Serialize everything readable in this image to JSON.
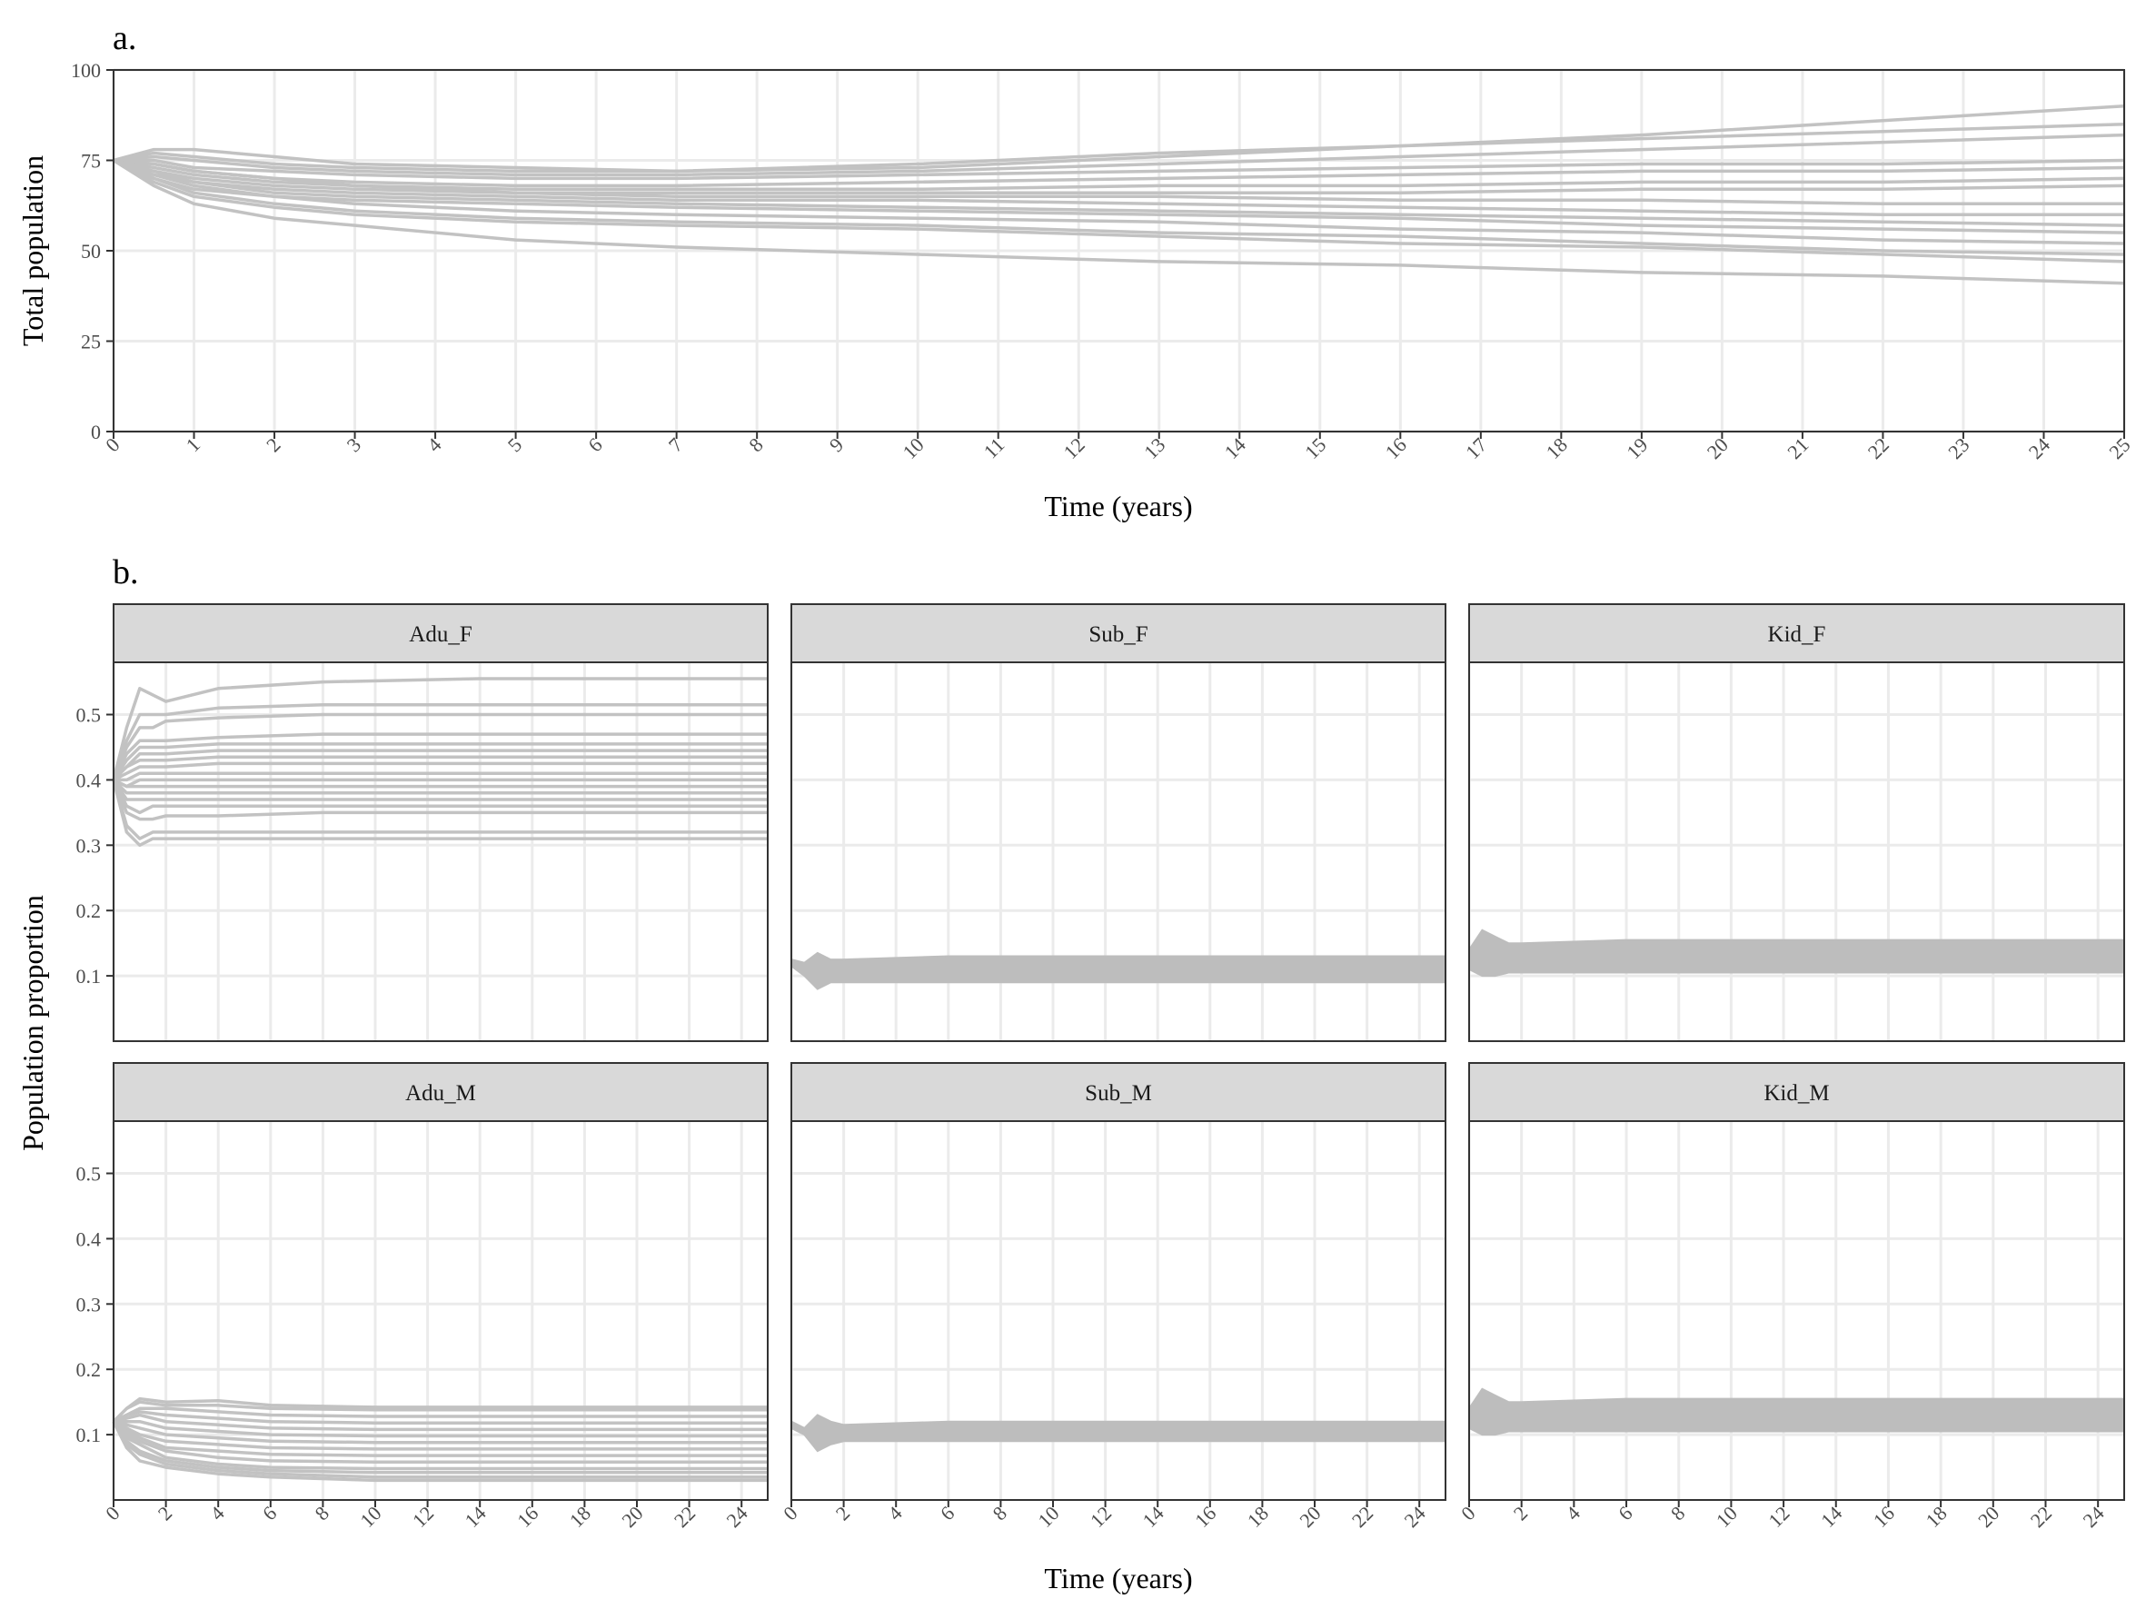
{
  "figure": {
    "panel_a_tag": "a.",
    "panel_b_tag": "b.",
    "line_color": "#c2c2c2",
    "background": "#ffffff"
  },
  "chart_data": [
    {
      "type": "line",
      "panel": "a.",
      "xlabel": "Time (years)",
      "ylabel": "Total population",
      "xlim": [
        0,
        25
      ],
      "ylim": [
        0,
        100
      ],
      "xticks": [
        0,
        1,
        2,
        3,
        4,
        5,
        6,
        7,
        8,
        9,
        10,
        11,
        12,
        13,
        14,
        15,
        16,
        17,
        18,
        19,
        20,
        21,
        22,
        23,
        24,
        25
      ],
      "yticks": [
        0,
        25,
        50,
        75,
        100
      ],
      "grid": true,
      "legend": "none",
      "series": [
        {
          "x": [
            0,
            0.5,
            1,
            2,
            3,
            5,
            7,
            10,
            13,
            16,
            19,
            22,
            25
          ],
          "y": [
            75,
            78,
            78,
            76,
            74,
            73,
            72,
            73,
            76,
            79,
            82,
            86,
            90
          ]
        },
        {
          "x": [
            0,
            0.5,
            1,
            2,
            3,
            5,
            7,
            10,
            13,
            16,
            19,
            22,
            25
          ],
          "y": [
            75,
            77,
            76,
            74,
            73,
            72,
            72,
            74,
            77,
            79,
            81,
            83,
            85
          ]
        },
        {
          "x": [
            0,
            0.5,
            1,
            2,
            3,
            5,
            7,
            10,
            13,
            16,
            19,
            22,
            25
          ],
          "y": [
            75,
            76,
            75,
            73,
            72,
            71,
            71,
            72,
            74,
            76,
            78,
            80,
            82
          ]
        },
        {
          "x": [
            0,
            0.5,
            1,
            2,
            3,
            5,
            7,
            10,
            13,
            16,
            19,
            22,
            25
          ],
          "y": [
            75,
            75,
            73,
            72,
            71,
            70,
            70,
            71,
            72,
            73,
            74,
            74,
            75
          ]
        },
        {
          "x": [
            0,
            0.5,
            1,
            2,
            3,
            5,
            7,
            10,
            13,
            16,
            19,
            22,
            25
          ],
          "y": [
            75,
            74,
            72,
            70,
            69,
            68,
            68,
            69,
            70,
            71,
            72,
            72,
            73
          ]
        },
        {
          "x": [
            0,
            0.5,
            1,
            2,
            3,
            5,
            7,
            10,
            13,
            16,
            19,
            22,
            25
          ],
          "y": [
            75,
            73,
            71,
            69,
            68,
            67,
            67,
            67,
            68,
            68,
            69,
            69,
            70
          ]
        },
        {
          "x": [
            0,
            0.5,
            1,
            2,
            3,
            5,
            7,
            10,
            13,
            16,
            19,
            22,
            25
          ],
          "y": [
            75,
            74,
            72,
            70,
            68,
            66,
            66,
            66,
            66,
            66,
            67,
            67,
            68
          ]
        },
        {
          "x": [
            0,
            0.5,
            1,
            2,
            3,
            5,
            7,
            10,
            13,
            16,
            19,
            22,
            25
          ],
          "y": [
            75,
            72,
            70,
            68,
            67,
            66,
            65,
            65,
            65,
            64,
            64,
            63,
            63
          ]
        },
        {
          "x": [
            0,
            0.5,
            1,
            2,
            3,
            5,
            7,
            10,
            13,
            16,
            19,
            22,
            25
          ],
          "y": [
            75,
            71,
            69,
            67,
            66,
            65,
            64,
            64,
            63,
            62,
            61,
            60,
            60
          ]
        },
        {
          "x": [
            0,
            0.5,
            1,
            2,
            3,
            5,
            7,
            10,
            13,
            16,
            19,
            22,
            25
          ],
          "y": [
            75,
            72,
            69,
            66,
            65,
            64,
            63,
            62,
            61,
            60,
            59,
            58,
            57
          ]
        },
        {
          "x": [
            0,
            0.5,
            1,
            2,
            3,
            5,
            7,
            10,
            13,
            16,
            19,
            22,
            25
          ],
          "y": [
            75,
            70,
            67,
            65,
            64,
            63,
            62,
            61,
            60,
            59,
            57,
            56,
            55
          ]
        },
        {
          "x": [
            0,
            0.5,
            1,
            2,
            3,
            5,
            7,
            10,
            13,
            16,
            19,
            22,
            25
          ],
          "y": [
            75,
            71,
            68,
            65,
            63,
            61,
            60,
            59,
            58,
            56,
            55,
            53,
            52
          ]
        },
        {
          "x": [
            0,
            0.5,
            1,
            2,
            3,
            5,
            7,
            10,
            13,
            16,
            19,
            22,
            25
          ],
          "y": [
            75,
            70,
            66,
            63,
            61,
            59,
            58,
            57,
            55,
            54,
            52,
            50,
            49
          ]
        },
        {
          "x": [
            0,
            0.5,
            1,
            2,
            3,
            5,
            7,
            10,
            13,
            16,
            19,
            22,
            25
          ],
          "y": [
            75,
            69,
            65,
            62,
            60,
            58,
            57,
            56,
            54,
            52,
            51,
            49,
            47
          ]
        },
        {
          "x": [
            0,
            0.5,
            1,
            2,
            3,
            5,
            7,
            10,
            13,
            16,
            19,
            22,
            25
          ],
          "y": [
            75,
            68,
            63,
            59,
            57,
            53,
            51,
            49,
            47,
            46,
            44,
            43,
            41
          ]
        }
      ]
    },
    {
      "type": "line",
      "panel": "b.",
      "xlabel": "Time (years)",
      "ylabel": "Population proportion",
      "xlim": [
        0,
        25
      ],
      "ylim": [
        0,
        0.58
      ],
      "xticks": [
        0,
        2,
        4,
        6,
        8,
        10,
        12,
        14,
        16,
        18,
        20,
        22,
        24
      ],
      "yticks": [
        0.1,
        0.2,
        0.3,
        0.4,
        0.5
      ],
      "grid": true,
      "legend": "none",
      "facets": [
        {
          "label": "Adu_F",
          "series_x": [
            0,
            0.5,
            1,
            1.5,
            2,
            4,
            8,
            14,
            20,
            25
          ],
          "series_y": [
            [
              0.4,
              0.48,
              0.54,
              0.53,
              0.52,
              0.54,
              0.55,
              0.555,
              0.555,
              0.555
            ],
            [
              0.4,
              0.46,
              0.5,
              0.5,
              0.5,
              0.51,
              0.515,
              0.515,
              0.515,
              0.515
            ],
            [
              0.4,
              0.45,
              0.48,
              0.48,
              0.49,
              0.495,
              0.5,
              0.5,
              0.5,
              0.5
            ],
            [
              0.4,
              0.44,
              0.46,
              0.46,
              0.46,
              0.465,
              0.47,
              0.47,
              0.47,
              0.47
            ],
            [
              0.4,
              0.43,
              0.45,
              0.45,
              0.45,
              0.455,
              0.455,
              0.455,
              0.455,
              0.455
            ],
            [
              0.4,
              0.42,
              0.44,
              0.44,
              0.44,
              0.445,
              0.445,
              0.445,
              0.445,
              0.445
            ],
            [
              0.4,
              0.42,
              0.43,
              0.43,
              0.43,
              0.435,
              0.435,
              0.435,
              0.435,
              0.435
            ],
            [
              0.4,
              0.41,
              0.42,
              0.42,
              0.42,
              0.425,
              0.425,
              0.425,
              0.425,
              0.425
            ],
            [
              0.4,
              0.4,
              0.41,
              0.41,
              0.41,
              0.41,
              0.41,
              0.41,
              0.41,
              0.41
            ],
            [
              0.4,
              0.39,
              0.4,
              0.4,
              0.4,
              0.4,
              0.4,
              0.4,
              0.4,
              0.4
            ],
            [
              0.4,
              0.39,
              0.39,
              0.39,
              0.39,
              0.39,
              0.39,
              0.39,
              0.39,
              0.39
            ],
            [
              0.4,
              0.38,
              0.38,
              0.38,
              0.38,
              0.38,
              0.38,
              0.38,
              0.38,
              0.38
            ],
            [
              0.4,
              0.37,
              0.37,
              0.37,
              0.37,
              0.37,
              0.37,
              0.37,
              0.37,
              0.37
            ],
            [
              0.4,
              0.36,
              0.35,
              0.36,
              0.36,
              0.36,
              0.36,
              0.36,
              0.36,
              0.36
            ],
            [
              0.4,
              0.35,
              0.34,
              0.34,
              0.345,
              0.345,
              0.35,
              0.35,
              0.35,
              0.35
            ],
            [
              0.4,
              0.33,
              0.31,
              0.32,
              0.32,
              0.32,
              0.32,
              0.32,
              0.32,
              0.32
            ],
            [
              0.4,
              0.32,
              0.3,
              0.31,
              0.31,
              0.31,
              0.31,
              0.31,
              0.31,
              0.31
            ]
          ]
        },
        {
          "label": "Sub_F",
          "band_x": [
            0,
            0.5,
            1,
            1.5,
            2,
            6,
            12,
            25
          ],
          "band_upper": [
            0.125,
            0.12,
            0.135,
            0.125,
            0.125,
            0.13,
            0.13,
            0.13
          ],
          "band_lower": [
            0.115,
            0.1,
            0.08,
            0.09,
            0.09,
            0.09,
            0.09,
            0.09
          ]
        },
        {
          "label": "Kid_F",
          "band_x": [
            0,
            0.5,
            1,
            1.5,
            2,
            6,
            12,
            25
          ],
          "band_upper": [
            0.14,
            0.17,
            0.16,
            0.15,
            0.15,
            0.155,
            0.155,
            0.155
          ],
          "band_lower": [
            0.11,
            0.1,
            0.1,
            0.105,
            0.105,
            0.105,
            0.105,
            0.105
          ]
        },
        {
          "label": "Adu_M",
          "series_x": [
            0,
            0.5,
            1,
            2,
            4,
            6,
            10,
            16,
            25
          ],
          "series_y": [
            [
              0.12,
              0.14,
              0.155,
              0.15,
              0.152,
              0.145,
              0.142,
              0.142,
              0.142
            ],
            [
              0.12,
              0.14,
              0.15,
              0.145,
              0.145,
              0.14,
              0.138,
              0.138,
              0.138
            ],
            [
              0.12,
              0.13,
              0.14,
              0.14,
              0.135,
              0.13,
              0.128,
              0.128,
              0.128
            ],
            [
              0.12,
              0.13,
              0.135,
              0.13,
              0.125,
              0.12,
              0.118,
              0.118,
              0.118
            ],
            [
              0.12,
              0.125,
              0.13,
              0.12,
              0.115,
              0.11,
              0.108,
              0.108,
              0.108
            ],
            [
              0.12,
              0.12,
              0.12,
              0.11,
              0.105,
              0.1,
              0.098,
              0.098,
              0.098
            ],
            [
              0.12,
              0.115,
              0.11,
              0.1,
              0.095,
              0.09,
              0.088,
              0.088,
              0.088
            ],
            [
              0.12,
              0.11,
              0.1,
              0.09,
              0.085,
              0.08,
              0.078,
              0.078,
              0.078
            ],
            [
              0.12,
              0.105,
              0.095,
              0.08,
              0.075,
              0.07,
              0.068,
              0.068,
              0.068
            ],
            [
              0.12,
              0.1,
              0.09,
              0.075,
              0.065,
              0.06,
              0.058,
              0.058,
              0.058
            ],
            [
              0.12,
              0.095,
              0.085,
              0.065,
              0.055,
              0.05,
              0.048,
              0.048,
              0.048
            ],
            [
              0.12,
              0.09,
              0.075,
              0.06,
              0.05,
              0.045,
              0.042,
              0.042,
              0.042
            ],
            [
              0.12,
              0.085,
              0.07,
              0.055,
              0.045,
              0.04,
              0.035,
              0.035,
              0.035
            ],
            [
              0.12,
              0.08,
              0.06,
              0.05,
              0.04,
              0.035,
              0.03,
              0.03,
              0.03
            ]
          ]
        },
        {
          "label": "Sub_M",
          "band_x": [
            0,
            0.5,
            1,
            1.5,
            2,
            6,
            12,
            25
          ],
          "band_upper": [
            0.12,
            0.11,
            0.13,
            0.12,
            0.115,
            0.12,
            0.12,
            0.12
          ],
          "band_lower": [
            0.11,
            0.1,
            0.075,
            0.085,
            0.09,
            0.09,
            0.09,
            0.09
          ]
        },
        {
          "label": "Kid_M",
          "band_x": [
            0,
            0.5,
            1,
            1.5,
            2,
            6,
            12,
            25
          ],
          "band_upper": [
            0.14,
            0.17,
            0.16,
            0.15,
            0.15,
            0.155,
            0.155,
            0.155
          ],
          "band_lower": [
            0.11,
            0.1,
            0.1,
            0.105,
            0.105,
            0.105,
            0.105,
            0.105
          ]
        }
      ]
    }
  ]
}
